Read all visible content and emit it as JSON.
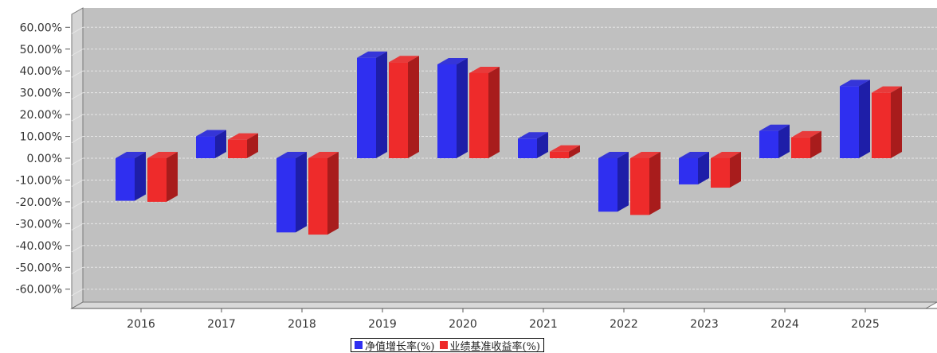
{
  "chart_data": {
    "type": "bar",
    "categories": [
      "2016",
      "2017",
      "2018",
      "2019",
      "2020",
      "2021",
      "2022",
      "2023",
      "2024",
      "2025"
    ],
    "series": [
      {
        "name": "净值增长率(%)",
        "color": "#2f2ff0",
        "values": [
          -19.5,
          10.0,
          -34.0,
          46.0,
          43.0,
          9.0,
          -24.5,
          -12.0,
          12.5,
          33.0
        ]
      },
      {
        "name": "业绩基准收益率(%)",
        "color": "#ee2b2b",
        "values": [
          -20.0,
          8.5,
          -35.0,
          44.0,
          39.0,
          3.0,
          -26.0,
          -13.5,
          9.5,
          30.0
        ]
      }
    ],
    "yticks": [
      "60.00%",
      "50.00%",
      "40.00%",
      "30.00%",
      "20.00%",
      "10.00%",
      "0.00%",
      "-10.00%",
      "-20.00%",
      "-30.00%",
      "-40.00%",
      "-50.00%",
      "-60.00%"
    ],
    "ylim": [
      -60,
      60
    ],
    "grid": true,
    "legend_position": "bottom",
    "plot_background": "#c0c0c0"
  }
}
